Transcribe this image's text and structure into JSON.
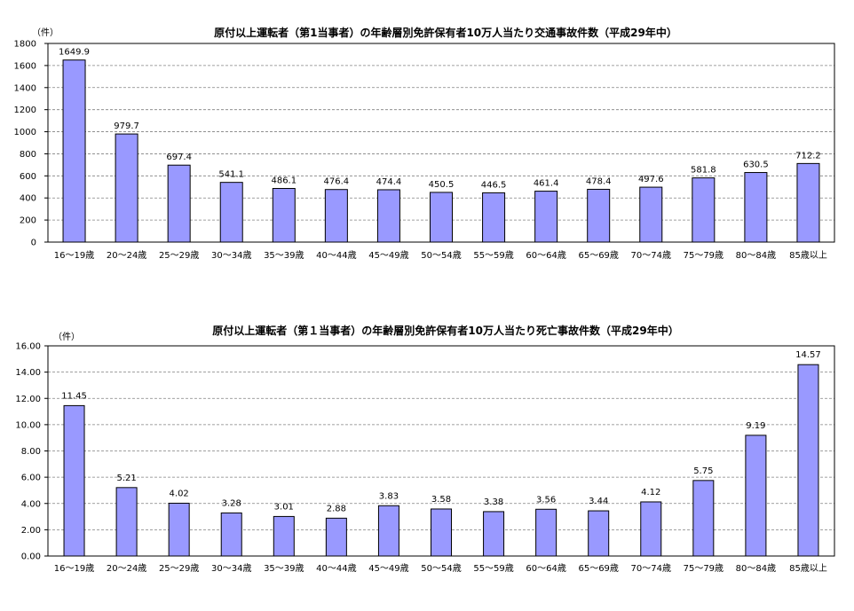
{
  "chart_data": [
    {
      "type": "bar",
      "title": "原付以上運転者（第1当事者）の年齢層別免許保有者10万人当たり交通事故件数（平成29年中）",
      "ylabel": "（件）",
      "ylim": [
        0,
        1800
      ],
      "yticks": [
        "0",
        "200",
        "400",
        "600",
        "800",
        "1000",
        "1200",
        "1400",
        "1600",
        "1800"
      ],
      "grid": true,
      "categories": [
        "16～19歳",
        "20～24歳",
        "25～29歳",
        "30～34歳",
        "35～39歳",
        "40～44歳",
        "45～49歳",
        "50～54歳",
        "55～59歳",
        "60～64歳",
        "65～69歳",
        "70～74歳",
        "75～79歳",
        "80～84歳",
        "85歳以上"
      ],
      "values": [
        1649.9,
        979.7,
        697.4,
        541.1,
        486.1,
        476.4,
        474.4,
        450.5,
        446.5,
        461.4,
        478.4,
        497.6,
        581.8,
        630.5,
        712.2
      ],
      "value_labels": [
        "1649.9",
        "979.7",
        "697.4",
        "541.1",
        "486.1",
        "476.4",
        "474.4",
        "450.5",
        "446.5",
        "461.4",
        "478.4",
        "497.6",
        "581.8",
        "630.5",
        "712.2"
      ],
      "bar_color": "#9999ff"
    },
    {
      "type": "bar",
      "title": "原付以上運転者（第１当事者）の年齢層別免許保有者10万人当たり死亡事故件数（平成29年中）",
      "ylabel": "（件）",
      "ylim": [
        0,
        16
      ],
      "yticks": [
        "0.00",
        "2.00",
        "4.00",
        "6.00",
        "8.00",
        "10.00",
        "12.00",
        "14.00",
        "16.00"
      ],
      "grid": true,
      "categories": [
        "16～19歳",
        "20～24歳",
        "25～29歳",
        "30～34歳",
        "35～39歳",
        "40～44歳",
        "45～49歳",
        "50～54歳",
        "55～59歳",
        "60～64歳",
        "65～69歳",
        "70～74歳",
        "75～79歳",
        "80～84歳",
        "85歳以上"
      ],
      "values": [
        11.45,
        5.21,
        4.02,
        3.28,
        3.01,
        2.88,
        3.83,
        3.58,
        3.38,
        3.56,
        3.44,
        4.12,
        5.75,
        9.19,
        14.57
      ],
      "value_labels": [
        "11.45",
        "5.21",
        "4.02",
        "3.28",
        "3.01",
        "2.88",
        "3.83",
        "3.58",
        "3.38",
        "3.56",
        "3.44",
        "4.12",
        "5.75",
        "9.19",
        "14.57"
      ],
      "bar_color": "#9999ff"
    }
  ]
}
